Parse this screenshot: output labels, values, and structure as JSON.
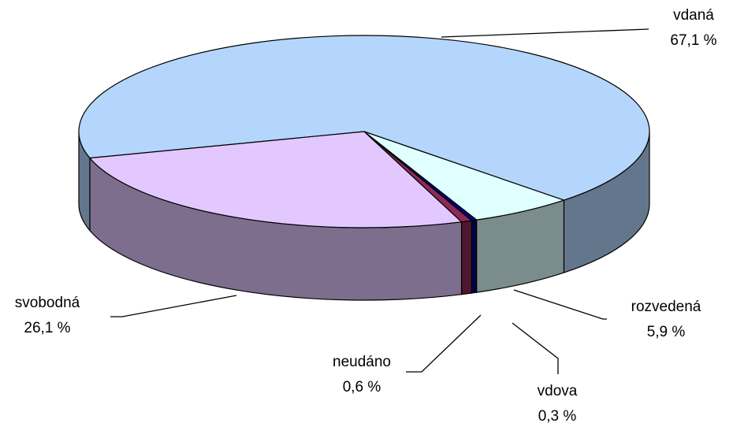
{
  "chart_data": {
    "type": "pie",
    "categories": [
      "vdaná",
      "rozvedená",
      "vdova",
      "neudáno",
      "svobodná"
    ],
    "values": [
      67.1,
      5.9,
      0.3,
      0.6,
      26.1
    ],
    "value_labels": [
      "67,1 %",
      "5,9 %",
      "0,3 %",
      "0,6 %",
      "26,1 %"
    ],
    "colors": [
      "#b5d6fc",
      "#e0ffff",
      "#000080",
      "#8e2a55",
      "#e2c8ff"
    ]
  }
}
